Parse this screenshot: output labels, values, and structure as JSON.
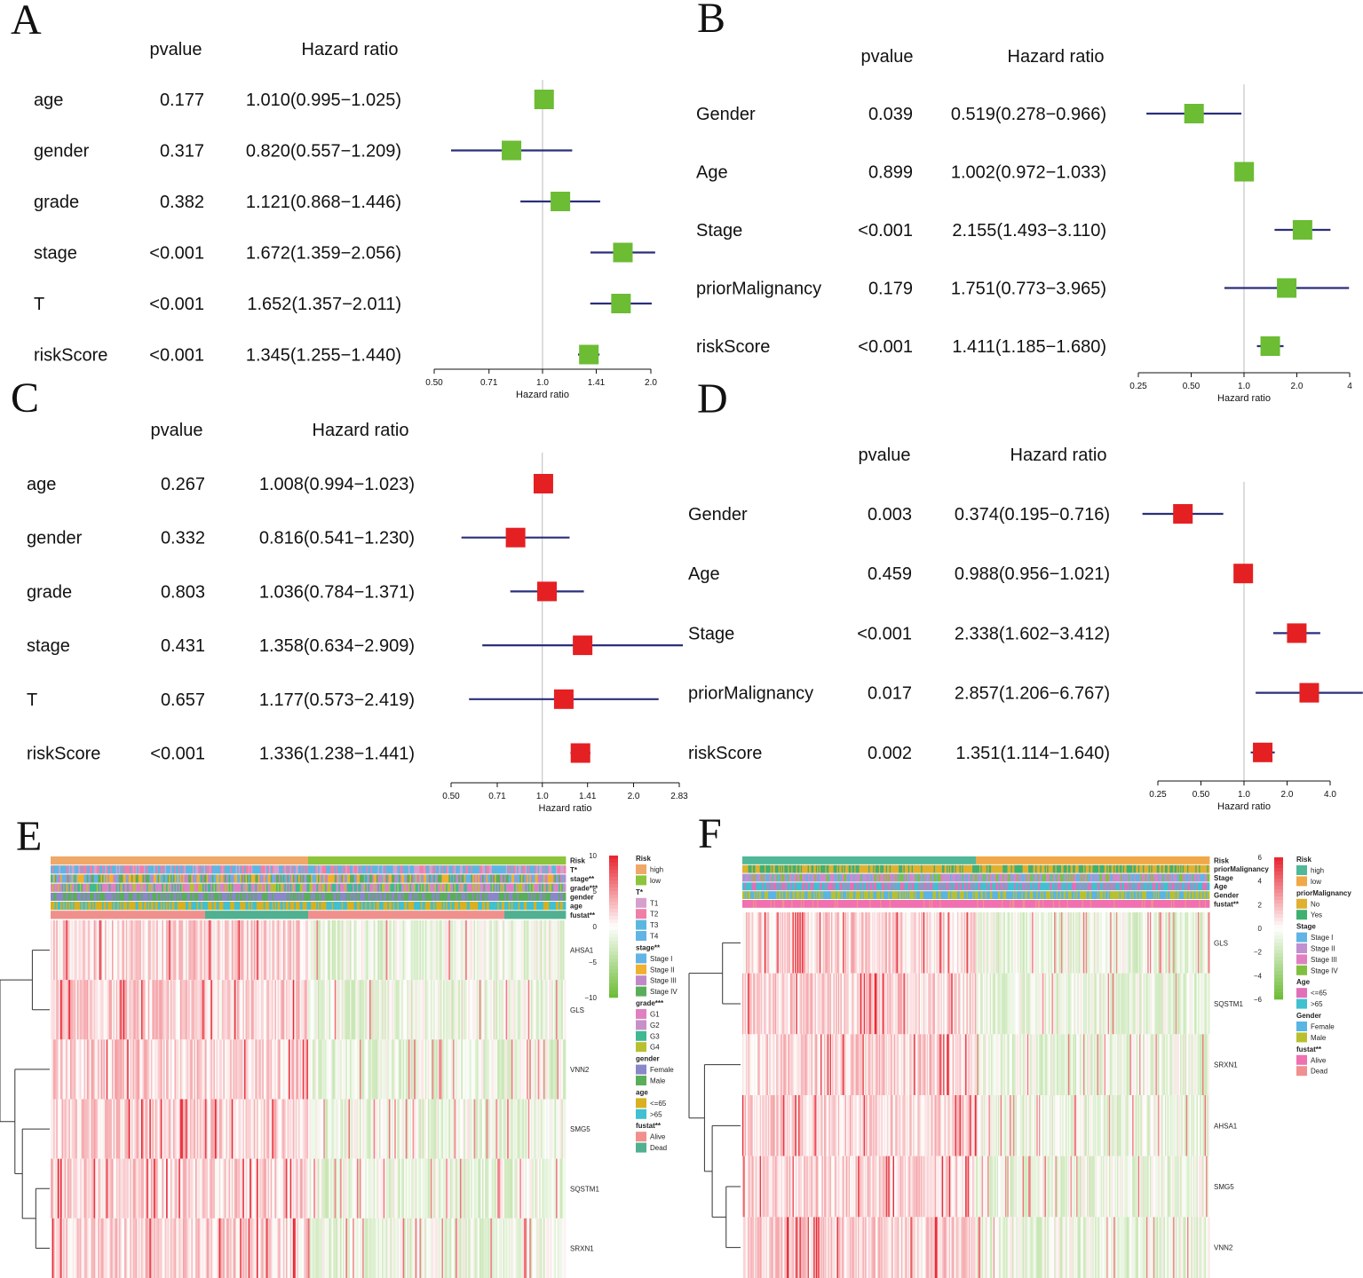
{
  "colors": {
    "green_box": "#6cbc34",
    "red_box": "#e42023",
    "ci_line": "#2b2f7a",
    "ref_line": "#bbbbbb",
    "heat_high": "#e8232f",
    "heat_low": "#6cbc34"
  },
  "chart_data": [
    {
      "panel": "A",
      "type": "forest",
      "marker": "green_box",
      "col_pvalue": "pvalue",
      "col_hr": "Hazard ratio",
      "xlabel": "Hazard ratio",
      "xticks": [
        "0.50",
        "0.71",
        "1.0",
        "1.41",
        "2.0"
      ],
      "xtick_values": [
        0.5,
        0.71,
        1.0,
        1.41,
        2.0
      ],
      "xlim": [
        0.5,
        2.0
      ],
      "rows": [
        {
          "name": "age",
          "pvalue": "0.177",
          "hr_text": "1.010(0.995−1.025)",
          "hr": 1.01,
          "lo": 0.995,
          "hi": 1.025
        },
        {
          "name": "gender",
          "pvalue": "0.317",
          "hr_text": "0.820(0.557−1.209)",
          "hr": 0.82,
          "lo": 0.557,
          "hi": 1.209
        },
        {
          "name": "grade",
          "pvalue": "0.382",
          "hr_text": "1.121(0.868−1.446)",
          "hr": 1.121,
          "lo": 0.868,
          "hi": 1.446
        },
        {
          "name": "stage",
          "pvalue": "<0.001",
          "hr_text": "1.672(1.359−2.056)",
          "hr": 1.672,
          "lo": 1.359,
          "hi": 2.056
        },
        {
          "name": "T",
          "pvalue": "<0.001",
          "hr_text": "1.652(1.357−2.011)",
          "hr": 1.652,
          "lo": 1.357,
          "hi": 2.011
        },
        {
          "name": "riskScore",
          "pvalue": "<0.001",
          "hr_text": "1.345(1.255−1.440)",
          "hr": 1.345,
          "lo": 1.255,
          "hi": 1.44
        }
      ]
    },
    {
      "panel": "B",
      "type": "forest",
      "marker": "green_box",
      "col_pvalue": "pvalue",
      "col_hr": "Hazard ratio",
      "xlabel": "Hazard ratio",
      "xticks": [
        "0.25",
        "0.50",
        "1.0",
        "2.0",
        "4"
      ],
      "xtick_values": [
        0.25,
        0.5,
        1.0,
        2.0,
        4.0
      ],
      "xlim": [
        0.25,
        4.0
      ],
      "rows": [
        {
          "name": "Gender",
          "pvalue": "0.039",
          "hr_text": "0.519(0.278−0.966)",
          "hr": 0.519,
          "lo": 0.278,
          "hi": 0.966
        },
        {
          "name": "Age",
          "pvalue": "0.899",
          "hr_text": "1.002(0.972−1.033)",
          "hr": 1.002,
          "lo": 0.972,
          "hi": 1.033
        },
        {
          "name": "Stage",
          "pvalue": "<0.001",
          "hr_text": "2.155(1.493−3.110)",
          "hr": 2.155,
          "lo": 1.493,
          "hi": 3.11
        },
        {
          "name": "priorMalignancy",
          "pvalue": "0.179",
          "hr_text": "1.751(0.773−3.965)",
          "hr": 1.751,
          "lo": 0.773,
          "hi": 3.965
        },
        {
          "name": "riskScore",
          "pvalue": "<0.001",
          "hr_text": "1.411(1.185−1.680)",
          "hr": 1.411,
          "lo": 1.185,
          "hi": 1.68
        }
      ]
    },
    {
      "panel": "C",
      "type": "forest",
      "marker": "red_box",
      "col_pvalue": "pvalue",
      "col_hr": "Hazard ratio",
      "xlabel": "Hazard ratio",
      "xticks": [
        "0.50",
        "0.71",
        "1.0",
        "1.41",
        "2.0",
        "2.83"
      ],
      "xtick_values": [
        0.5,
        0.71,
        1.0,
        1.41,
        2.0,
        2.83
      ],
      "xlim": [
        0.5,
        2.83
      ],
      "rows": [
        {
          "name": "age",
          "pvalue": "0.267",
          "hr_text": "1.008(0.994−1.023)",
          "hr": 1.008,
          "lo": 0.994,
          "hi": 1.023
        },
        {
          "name": "gender",
          "pvalue": "0.332",
          "hr_text": "0.816(0.541−1.230)",
          "hr": 0.816,
          "lo": 0.541,
          "hi": 1.23
        },
        {
          "name": "grade",
          "pvalue": "0.803",
          "hr_text": "1.036(0.784−1.371)",
          "hr": 1.036,
          "lo": 0.784,
          "hi": 1.371
        },
        {
          "name": "stage",
          "pvalue": "0.431",
          "hr_text": "1.358(0.634−2.909)",
          "hr": 1.358,
          "lo": 0.634,
          "hi": 2.909
        },
        {
          "name": "T",
          "pvalue": "0.657",
          "hr_text": "1.177(0.573−2.419)",
          "hr": 1.177,
          "lo": 0.573,
          "hi": 2.419
        },
        {
          "name": "riskScore",
          "pvalue": "<0.001",
          "hr_text": "1.336(1.238−1.441)",
          "hr": 1.336,
          "lo": 1.238,
          "hi": 1.441
        }
      ]
    },
    {
      "panel": "D",
      "type": "forest",
      "marker": "red_box",
      "col_pvalue": "pvalue",
      "col_hr": "Hazard ratio",
      "xlabel": "Hazard ratio",
      "xticks": [
        "0.25",
        "0.50",
        "1.0",
        "2.0",
        "4.0"
      ],
      "xtick_values": [
        0.25,
        0.5,
        1.0,
        2.0,
        4.0
      ],
      "xlim": [
        0.25,
        4.0
      ],
      "rows": [
        {
          "name": "Gender",
          "pvalue": "0.003",
          "hr_text": "0.374(0.195−0.716)",
          "hr": 0.374,
          "lo": 0.195,
          "hi": 0.716
        },
        {
          "name": "Age",
          "pvalue": "0.459",
          "hr_text": "0.988(0.956−1.021)",
          "hr": 0.988,
          "lo": 0.956,
          "hi": 1.021
        },
        {
          "name": "Stage",
          "pvalue": "<0.001",
          "hr_text": "2.338(1.602−3.412)",
          "hr": 2.338,
          "lo": 1.602,
          "hi": 3.412
        },
        {
          "name": "priorMalignancy",
          "pvalue": "0.017",
          "hr_text": "2.857(1.206−6.767)",
          "hr": 2.857,
          "lo": 1.206,
          "hi": 6.767
        },
        {
          "name": "riskScore",
          "pvalue": "0.002",
          "hr_text": "1.351(1.114−1.640)",
          "hr": 1.351,
          "lo": 1.114,
          "hi": 1.64
        }
      ]
    },
    {
      "panel": "E",
      "type": "heatmap",
      "n_samples": 370,
      "high_fraction": 0.5,
      "annotation_tracks": [
        {
          "label": "Risk",
          "colors": [
            "#f0a868",
            "#8cc43c"
          ],
          "mode": "split"
        },
        {
          "label": "T*",
          "colors": [
            "#d6a0cc",
            "#f07fa8",
            "#5ab8e0",
            "#62b4e4"
          ],
          "mode": "random"
        },
        {
          "label": "stage**",
          "colors": [
            "#62b4e4",
            "#f0b030",
            "#c088c8",
            "#5aae5a"
          ],
          "mode": "random"
        },
        {
          "label": "grade***",
          "colors": [
            "#e080c0",
            "#c890c8",
            "#40b890",
            "#b8c030"
          ],
          "mode": "random"
        },
        {
          "label": "gender",
          "colors": [
            "#8a88c8",
            "#5aae5a"
          ],
          "mode": "random"
        },
        {
          "label": "age",
          "colors": [
            "#d8b020",
            "#40c0d0"
          ],
          "mode": "random"
        },
        {
          "label": "fustat**",
          "colors": [
            "#f0908c",
            "#50b090"
          ],
          "mode": "blocks"
        }
      ],
      "genes": [
        "AHSA1",
        "GLS",
        "VNN2",
        "SMG5",
        "SQSTM1",
        "SRXN1"
      ],
      "scale_ticks": [
        "10",
        "5",
        "0",
        "−5",
        "−10"
      ],
      "legend": [
        {
          "title": "Risk",
          "items": [
            {
              "label": "high",
              "color": "#f0a868"
            },
            {
              "label": "low",
              "color": "#8cc43c"
            }
          ]
        },
        {
          "title": "T*",
          "items": [
            {
              "label": "T1",
              "color": "#d6a0cc"
            },
            {
              "label": "T2",
              "color": "#f07fa8"
            },
            {
              "label": "T3",
              "color": "#5ab8e0"
            },
            {
              "label": "T4",
              "color": "#62b4e4"
            }
          ]
        },
        {
          "title": "stage**",
          "items": [
            {
              "label": "Stage I",
              "color": "#62b4e4"
            },
            {
              "label": "Stage II",
              "color": "#f0b030"
            },
            {
              "label": "Stage III",
              "color": "#c088c8"
            },
            {
              "label": "Stage IV",
              "color": "#5aae5a"
            }
          ]
        },
        {
          "title": "grade***",
          "items": [
            {
              "label": "G1",
              "color": "#e080c0"
            },
            {
              "label": "G2",
              "color": "#c890c8"
            },
            {
              "label": "G3",
              "color": "#40b890"
            },
            {
              "label": "G4",
              "color": "#b8c030"
            }
          ]
        },
        {
          "title": "gender",
          "items": [
            {
              "label": "Female",
              "color": "#8a88c8"
            },
            {
              "label": "Male",
              "color": "#5aae5a"
            }
          ]
        },
        {
          "title": "age",
          "items": [
            {
              "label": "<=65",
              "color": "#d8b020"
            },
            {
              "label": ">65",
              "color": "#40c0d0"
            }
          ]
        },
        {
          "title": "fustat**",
          "items": [
            {
              "label": "Alive",
              "color": "#f0908c"
            },
            {
              "label": "Dead",
              "color": "#50b090"
            }
          ]
        }
      ]
    },
    {
      "panel": "F",
      "type": "heatmap",
      "n_samples": 400,
      "high_fraction": 0.5,
      "annotation_tracks": [
        {
          "label": "Risk",
          "colors": [
            "#50b898",
            "#f0a848"
          ],
          "mode": "split"
        },
        {
          "label": "priorMalignancy",
          "colors": [
            "#e0b030",
            "#40b070"
          ],
          "mode": "random"
        },
        {
          "label": "Stage",
          "colors": [
            "#62b4e4",
            "#c090d0",
            "#e080c0",
            "#80c040"
          ],
          "mode": "random"
        },
        {
          "label": "Age",
          "colors": [
            "#e070b8",
            "#40c0d0"
          ],
          "mode": "random"
        },
        {
          "label": "Gender",
          "colors": [
            "#5ab4e4",
            "#b8c030"
          ],
          "mode": "random"
        },
        {
          "label": "fustat**",
          "colors": [
            "#f070b0",
            "#f09090"
          ],
          "mode": "mostly"
        }
      ],
      "genes": [
        "GLS",
        "SQSTM1",
        "SRXN1",
        "AHSA1",
        "SMG5",
        "VNN2"
      ],
      "scale_ticks": [
        "6",
        "4",
        "2",
        "0",
        "−2",
        "−4",
        "−6"
      ],
      "legend": [
        {
          "title": "Risk",
          "items": [
            {
              "label": "high",
              "color": "#50b898"
            },
            {
              "label": "low",
              "color": "#f0a848"
            }
          ]
        },
        {
          "title": "priorMalignancy",
          "items": [
            {
              "label": "No",
              "color": "#e0b030"
            },
            {
              "label": "Yes",
              "color": "#40b070"
            }
          ]
        },
        {
          "title": "Stage",
          "items": [
            {
              "label": "Stage I",
              "color": "#62b4e4"
            },
            {
              "label": "Stage II",
              "color": "#c090d0"
            },
            {
              "label": "Stage III",
              "color": "#e080c0"
            },
            {
              "label": "Stage IV",
              "color": "#80c040"
            }
          ]
        },
        {
          "title": "Age",
          "items": [
            {
              "label": "<=65",
              "color": "#e070b8"
            },
            {
              "label": ">65",
              "color": "#40c0d0"
            }
          ]
        },
        {
          "title": "Gender",
          "items": [
            {
              "label": "Female",
              "color": "#5ab4e4"
            },
            {
              "label": "Male",
              "color": "#b8c030"
            }
          ]
        },
        {
          "title": "fustat**",
          "items": [
            {
              "label": "Alive",
              "color": "#f070b0"
            },
            {
              "label": "Dead",
              "color": "#f09090"
            }
          ]
        }
      ]
    }
  ]
}
